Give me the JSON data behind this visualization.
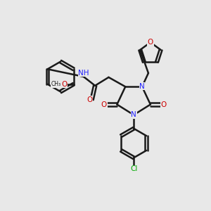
{
  "background_color": "#e8e8e8",
  "bond_color": "#1a1a1a",
  "bond_width": 1.8,
  "atom_colors": {
    "N": "#2020ff",
    "O": "#cc0000",
    "Cl": "#00aa00",
    "H": "#666666",
    "C": "#1a1a1a"
  },
  "font_size_atom": 7.5,
  "font_size_small": 6.0
}
